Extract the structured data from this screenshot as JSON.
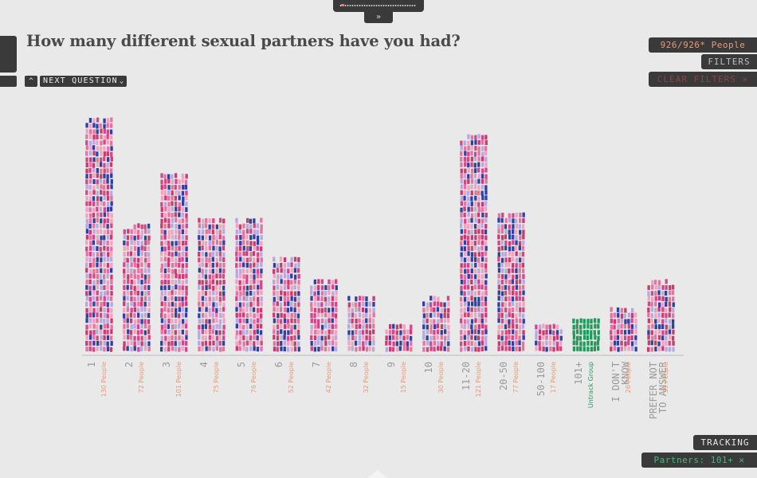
{
  "nav": {
    "collapse_icon": "double-chevron-down-icon",
    "prev_icon": "chevron-up-icon",
    "next_label": "NEXT QUESTION",
    "next_icon": "chevron-down-icon"
  },
  "header": {
    "question": "How many different sexual partners have you had?"
  },
  "panel": {
    "people_count": "926/926* People",
    "filters_label": "FILTERS",
    "clear_filters_label": "CLEAR FILTERS ✕",
    "tracking_label": "TRACKING",
    "tracking_filter": "Partners: 101+ ✕"
  },
  "colors": {
    "figure_palette": [
      "#e5739f",
      "#2f3fa3",
      "#b7a8e0",
      "#d4458a",
      "#f0a3c0",
      "#c93a6e"
    ],
    "tracked": "#1e9a5a",
    "count_label": "#e89a73",
    "axis_label": "#9a9a9a"
  },
  "chart_data": {
    "type": "bar",
    "title": "How many different sexual partners have you had?",
    "unit": "People",
    "categories": [
      [
        "1"
      ],
      [
        "2"
      ],
      [
        "3"
      ],
      [
        "4"
      ],
      [
        "5"
      ],
      [
        "6"
      ],
      [
        "7"
      ],
      [
        "8"
      ],
      [
        "9"
      ],
      [
        "10"
      ],
      [
        "11-20"
      ],
      [
        "20-50"
      ],
      [
        "50-100"
      ],
      [
        "101+"
      ],
      [
        "I DON'T",
        "KNOW"
      ],
      [
        "PREFER NOT",
        "TO ANSWER"
      ]
    ],
    "values": [
      130,
      72,
      101,
      75,
      76,
      52,
      42,
      32,
      15,
      30,
      121,
      77,
      17,
      19,
      26,
      39
    ],
    "counts_labels": [
      "130 People",
      "72 People",
      "101 People",
      "75 People",
      "76 People",
      "52 People",
      "42 People",
      "32 People",
      "15 People",
      "30 People",
      "121 People",
      "77 People",
      "17 People",
      "Untrack Group",
      "26 People",
      "39 People"
    ],
    "tracked_category": "101+"
  }
}
